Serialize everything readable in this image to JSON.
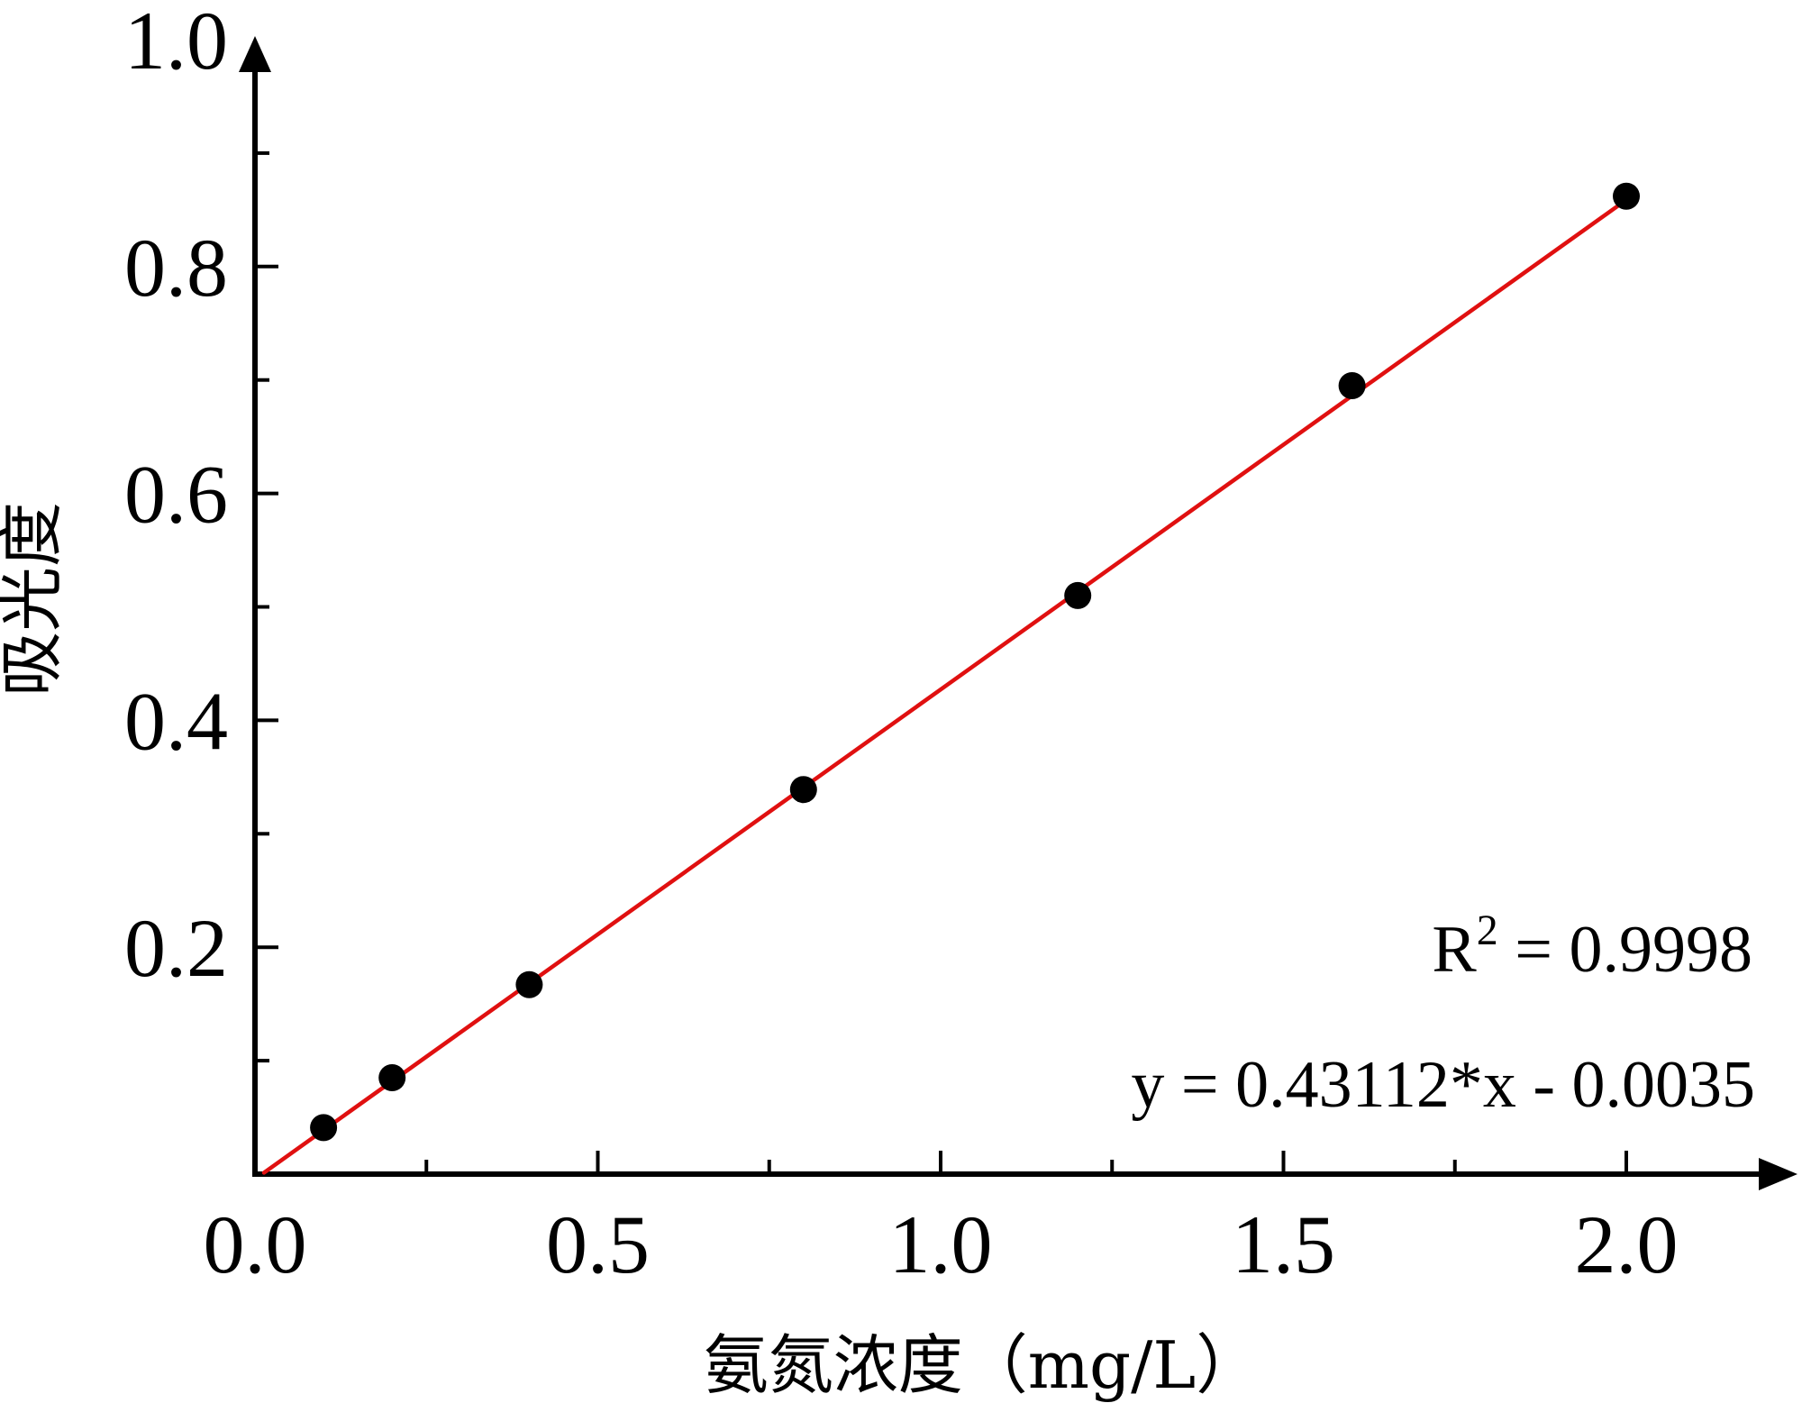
{
  "chart_data": {
    "type": "scatter",
    "title": "",
    "xlabel": "氨氮浓度（mg/L）",
    "ylabel": "吸光度",
    "xlim": [
      0,
      2.2
    ],
    "ylim": [
      0,
      1.0
    ],
    "x_ticks": [
      "0.0",
      "0.5",
      "1.0",
      "1.5",
      "2.0"
    ],
    "y_ticks": [
      "0.2",
      "0.4",
      "0.6",
      "0.8",
      "1.0"
    ],
    "grid": false,
    "legend": "none",
    "series": [
      {
        "type": "scatter",
        "x": [
          0.1,
          0.2,
          0.4,
          0.8,
          1.2,
          1.6,
          2.0
        ],
        "y": [
          0.041,
          0.085,
          0.167,
          0.339,
          0.51,
          0.695,
          0.862
        ],
        "color": "#000000"
      },
      {
        "type": "line",
        "fit": {
          "slope": 0.43112,
          "intercept": -0.0035,
          "x_range": [
            0,
            2.0
          ]
        },
        "color": "#e01010"
      }
    ],
    "annotations": {
      "r2_prefix": "R",
      "r2_sup": "2",
      "r2_value": " = 0.9998",
      "equation": "y = 0.43112*x - 0.0035"
    }
  }
}
